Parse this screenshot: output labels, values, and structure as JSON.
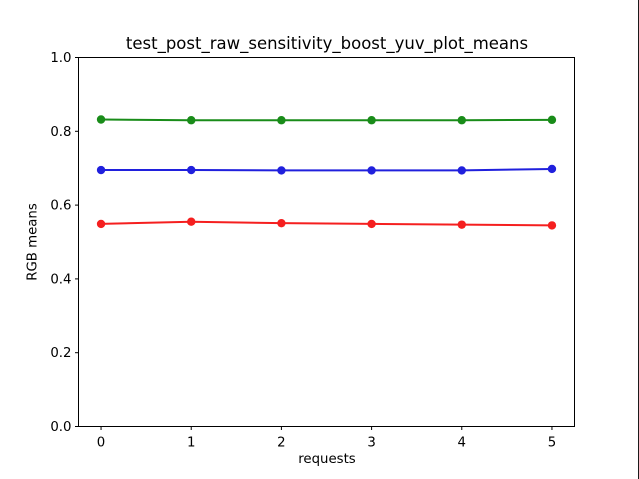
{
  "chart_data": {
    "type": "line",
    "title": "test_post_raw_sensitivity_boost_yuv_plot_means",
    "xlabel": "requests",
    "ylabel": "RGB means",
    "x": [
      0,
      1,
      2,
      3,
      4,
      5
    ],
    "series": [
      {
        "name": "green-line",
        "color": "#198c19",
        "values": [
          0.832,
          0.83,
          0.83,
          0.83,
          0.83,
          0.831
        ]
      },
      {
        "name": "blue-line",
        "color": "#2020dd",
        "values": [
          0.695,
          0.695,
          0.694,
          0.694,
          0.694,
          0.698
        ]
      },
      {
        "name": "red-line",
        "color": "#f51f1f",
        "values": [
          0.549,
          0.555,
          0.551,
          0.549,
          0.547,
          0.545
        ]
      }
    ],
    "xlim": [
      -0.25,
      5.25
    ],
    "ylim": [
      0,
      1
    ],
    "xticks": [
      0,
      1,
      2,
      3,
      4,
      5
    ],
    "xtick_labels": [
      "0",
      "1",
      "2",
      "3",
      "4",
      "5"
    ],
    "yticks": [
      0.0,
      0.2,
      0.4,
      0.6,
      0.8,
      1.0
    ],
    "ytick_labels": [
      "0.0",
      "0.2",
      "0.4",
      "0.6",
      "0.8",
      "1.0"
    ],
    "grid": false,
    "legend": null,
    "marker": "circle",
    "marker_radius": 4.2,
    "line_width": 2,
    "axis_color": "#000000",
    "background_color": "#ffffff"
  }
}
